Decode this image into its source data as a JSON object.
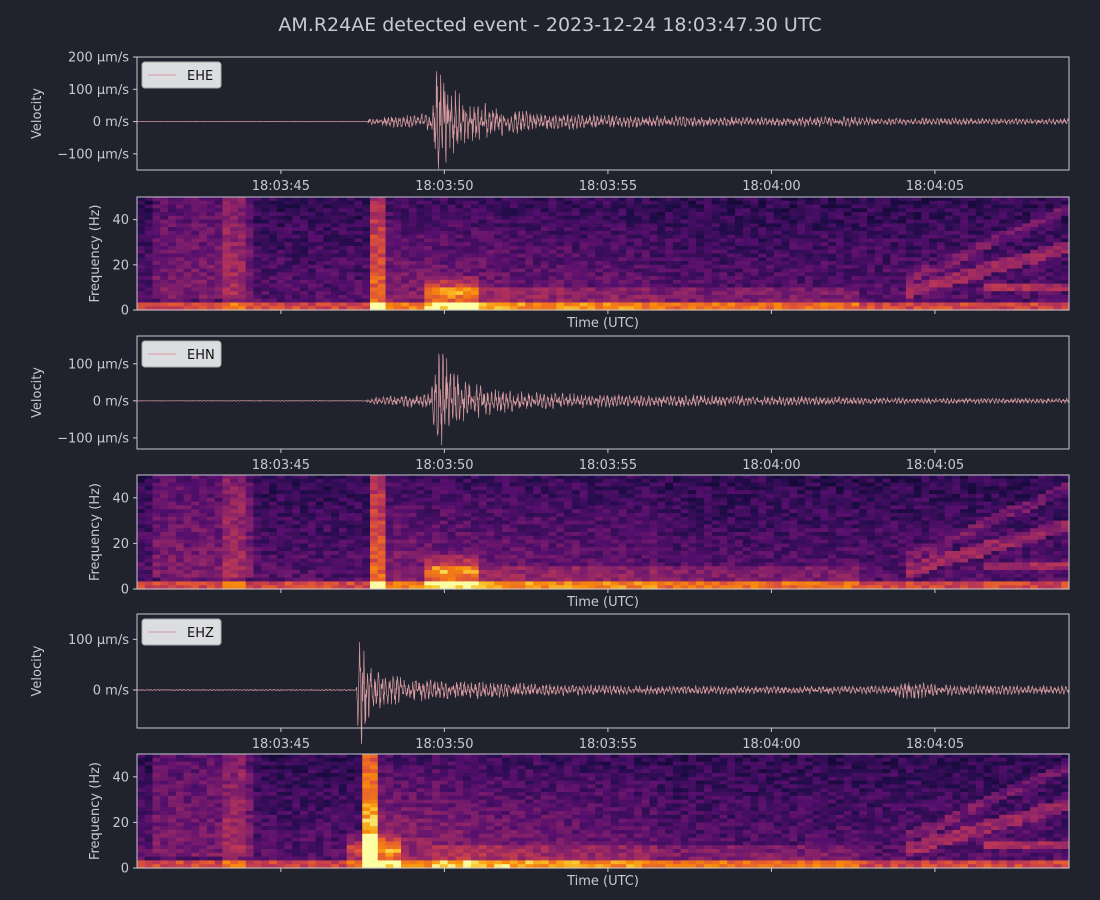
{
  "title": "AM.R24AE detected event - 2023-12-24 18:03:47.30 UTC",
  "colors": {
    "background": "#20232d",
    "text": "#c9cad0",
    "trace": "#d79aa0",
    "colormap": "inferno"
  },
  "time_axis": {
    "start": "18:03:40.6",
    "end": "18:04:09.1",
    "ticks": [
      "18:03:45",
      "18:03:50",
      "18:03:55",
      "18:04:00",
      "18:04:05"
    ],
    "tick_seconds": [
      4.4,
      9.4,
      14.4,
      19.4,
      24.4
    ],
    "xlabel": "Time (UTC)"
  },
  "chart_data": [
    {
      "type": "line",
      "channel": "EHE",
      "legend": "EHE",
      "ylabel": "Velocity",
      "ylim": [
        -150,
        200
      ],
      "yticks": [
        200,
        100,
        0,
        -100
      ],
      "ytick_labels": [
        "200 µm/s",
        "100 µm/s",
        "0 m/s",
        "−100 µm/s"
      ],
      "x_range_s": [
        0,
        28.5
      ],
      "envelope": [
        [
          0,
          0.5
        ],
        [
          7.0,
          1
        ],
        [
          7.1,
          10
        ],
        [
          9.0,
          25
        ],
        [
          9.2,
          170
        ],
        [
          9.3,
          140
        ],
        [
          9.6,
          95
        ],
        [
          10.0,
          70
        ],
        [
          11.0,
          40
        ],
        [
          12.5,
          25
        ],
        [
          15.0,
          18
        ],
        [
          17.0,
          15
        ],
        [
          18.5,
          14
        ],
        [
          19.0,
          13
        ],
        [
          21.5,
          14
        ],
        [
          23.0,
          10
        ],
        [
          25.0,
          10
        ],
        [
          28.5,
          8
        ]
      ]
    },
    {
      "type": "heatmap",
      "channel": "EHE",
      "ylabel": "Frequency (Hz)",
      "xlabel": "Time (UTC)",
      "ylim": [
        0,
        50
      ],
      "yticks": [
        0,
        20,
        40
      ]
    },
    {
      "type": "line",
      "channel": "EHN",
      "legend": "EHN",
      "ylabel": "Velocity",
      "ylim": [
        -130,
        175
      ],
      "yticks": [
        100,
        0,
        -100
      ],
      "ytick_labels": [
        "100 µm/s",
        "0 m/s",
        "−100 µm/s"
      ],
      "x_range_s": [
        0,
        28.5
      ],
      "envelope": [
        [
          0,
          0.5
        ],
        [
          7.0,
          1
        ],
        [
          7.1,
          8
        ],
        [
          9.0,
          20
        ],
        [
          9.2,
          155
        ],
        [
          9.3,
          125
        ],
        [
          9.6,
          90
        ],
        [
          10.0,
          50
        ],
        [
          11.0,
          30
        ],
        [
          12.5,
          20
        ],
        [
          15.0,
          15
        ],
        [
          18.0,
          14
        ],
        [
          20.0,
          12
        ],
        [
          23.0,
          8
        ],
        [
          28.5,
          6
        ]
      ]
    },
    {
      "type": "heatmap",
      "channel": "EHN",
      "ylabel": "Frequency (Hz)",
      "xlabel": "Time (UTC)",
      "ylim": [
        0,
        50
      ],
      "yticks": [
        0,
        20,
        40
      ]
    },
    {
      "type": "line",
      "channel": "EHZ",
      "legend": "EHZ",
      "ylabel": "Velocity",
      "ylim": [
        -75,
        150
      ],
      "yticks": [
        100,
        0
      ],
      "ytick_labels": [
        "100 µm/s",
        "0 m/s"
      ],
      "x_range_s": [
        0,
        28.5
      ],
      "envelope": [
        [
          0,
          1
        ],
        [
          6.7,
          1
        ],
        [
          6.8,
          120
        ],
        [
          7.0,
          60
        ],
        [
          7.5,
          30
        ],
        [
          9.0,
          18
        ],
        [
          11.0,
          15
        ],
        [
          13.0,
          10
        ],
        [
          16.0,
          8
        ],
        [
          20.0,
          7
        ],
        [
          23.0,
          8
        ],
        [
          23.7,
          18
        ],
        [
          24.5,
          10
        ],
        [
          28.5,
          8
        ]
      ]
    },
    {
      "type": "heatmap",
      "channel": "EHZ",
      "ylabel": "Frequency (Hz)",
      "xlabel": "Time (UTC)",
      "ylim": [
        0,
        50
      ],
      "yticks": [
        0,
        20,
        40
      ]
    }
  ]
}
